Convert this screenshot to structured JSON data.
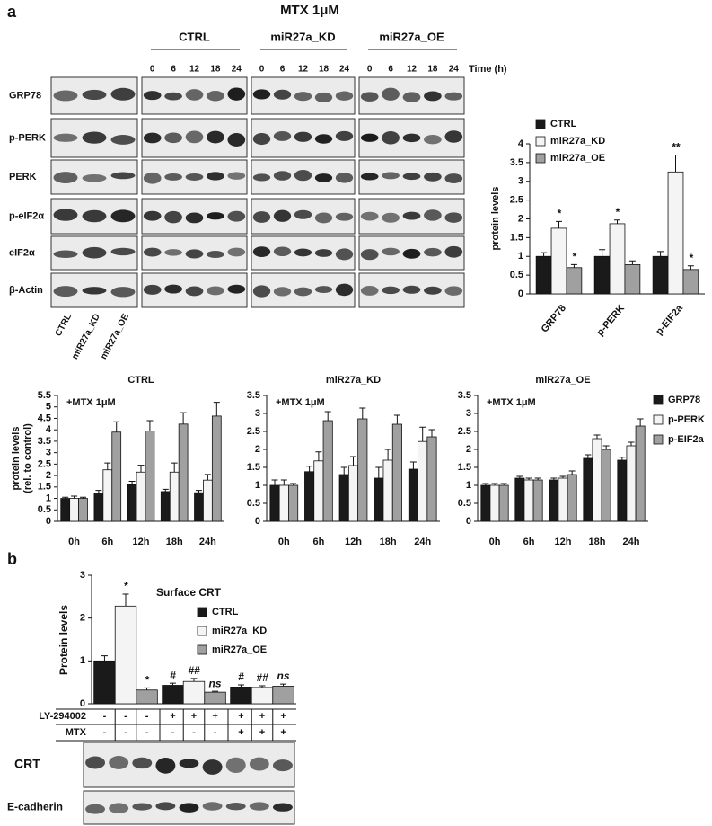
{
  "panel_a": {
    "label": "a",
    "treatment": "MTX 1μM",
    "groups": [
      "CTRL",
      "miR27a_KD",
      "miR27a_OE"
    ],
    "time_points": [
      0,
      6,
      12,
      18,
      24
    ],
    "time_label": "Time (h)",
    "blot_rows": [
      "GRP78",
      "p-PERK",
      "PERK",
      "p-eIF2α",
      "eIF2α",
      "β-Actin"
    ],
    "lane_labels": [
      "CTRL",
      "miR27a_KD",
      "miR27a_OE"
    ]
  },
  "panel_b": {
    "label": "b",
    "treatments": [
      {
        "name": "LY-294002",
        "signs": [
          "-",
          "-",
          "-",
          "+",
          "+",
          "+",
          "+",
          "+",
          "+"
        ]
      },
      {
        "name": "MTX",
        "signs": [
          "-",
          "-",
          "-",
          "-",
          "-",
          "-",
          "+",
          "+",
          "+"
        ]
      }
    ],
    "blots": [
      "CRT",
      "E-cadherin"
    ]
  },
  "chart_data": [
    {
      "type": "bar",
      "ylabel": "protein levels",
      "categories": [
        "GRP78",
        "p-PERK",
        "p-EIF2a"
      ],
      "series": [
        {
          "name": "CTRL",
          "color": "#1a1a1a",
          "values": [
            1,
            1,
            1
          ],
          "errors": [
            0.1,
            0.18,
            0.13
          ],
          "annotations": [
            null,
            null,
            null
          ]
        },
        {
          "name": "miR27a_KD",
          "color": "#f4f4f4",
          "values": [
            1.75,
            1.87,
            3.25
          ],
          "errors": [
            0.18,
            0.1,
            0.45
          ],
          "annotations": [
            "*",
            "*",
            "**"
          ]
        },
        {
          "name": "miR27a_OE",
          "color": "#a0a0a0",
          "values": [
            0.7,
            0.78,
            0.65
          ],
          "errors": [
            0.08,
            0.1,
            0.1
          ],
          "annotations": [
            "*",
            null,
            "*"
          ]
        }
      ],
      "ylim": [
        0,
        4
      ],
      "yticks": [
        0,
        0.5,
        1,
        1.5,
        2,
        2.5,
        3,
        3.5,
        4
      ],
      "legend": "top"
    },
    {
      "type": "bar",
      "ylabel": [
        "protein levels",
        "(rel. to control)"
      ],
      "annotation": "+MTX 1μM",
      "categories": [
        "0h",
        "6h",
        "12h",
        "18h",
        "24h"
      ],
      "series": [
        {
          "name": "GRP78",
          "color": "#1a1a1a"
        },
        {
          "name": "p-PERK",
          "color": "#f4f4f4"
        },
        {
          "name": "p-EIF2a",
          "color": "#a0a0a0"
        }
      ],
      "legend": "right",
      "panels": [
        {
          "title": "CTRL",
          "ylim": [
            0,
            5.5
          ],
          "yticks": [
            0,
            0.5,
            1,
            1.5,
            2,
            2.5,
            3,
            3.5,
            4,
            4.5,
            5,
            5.5
          ],
          "series": [
            {
              "values": [
                1,
                1.2,
                1.6,
                1.3,
                1.25
              ],
              "errors": [
                0.05,
                0.15,
                0.15,
                0.1,
                0.1
              ]
            },
            {
              "values": [
                1,
                2.25,
                2.15,
                2.15,
                1.8
              ],
              "errors": [
                0.1,
                0.3,
                0.3,
                0.4,
                0.25
              ]
            },
            {
              "values": [
                1,
                3.9,
                3.95,
                4.25,
                4.6
              ],
              "errors": [
                0.05,
                0.45,
                0.45,
                0.5,
                0.6
              ]
            }
          ]
        },
        {
          "title": "miR27a_KD",
          "ylim": [
            0,
            3.5
          ],
          "yticks": [
            0,
            0.5,
            1,
            1.5,
            2,
            2.5,
            3,
            3.5
          ],
          "series": [
            {
              "values": [
                1,
                1.38,
                1.3,
                1.2,
                1.45
              ],
              "errors": [
                0.15,
                0.15,
                0.2,
                0.3,
                0.2
              ]
            },
            {
              "values": [
                1,
                1.68,
                1.55,
                1.7,
                2.22
              ],
              "errors": [
                0.15,
                0.25,
                0.25,
                0.3,
                0.4
              ]
            },
            {
              "values": [
                1,
                2.8,
                2.85,
                2.7,
                2.35
              ],
              "errors": [
                0.05,
                0.25,
                0.3,
                0.25,
                0.2
              ]
            }
          ]
        },
        {
          "title": "miR27a_OE",
          "ylim": [
            0,
            3.5
          ],
          "yticks": [
            0,
            0.5,
            1,
            1.5,
            2,
            2.5,
            3,
            3.5
          ],
          "series": [
            {
              "values": [
                1,
                1.2,
                1.15,
                1.75,
                1.7
              ],
              "errors": [
                0.05,
                0.05,
                0.05,
                0.1,
                0.08
              ]
            },
            {
              "values": [
                1,
                1.15,
                1.2,
                2.3,
                2.1
              ],
              "errors": [
                0.05,
                0.05,
                0.05,
                0.1,
                0.1
              ]
            },
            {
              "values": [
                1,
                1.15,
                1.3,
                2.0,
                2.65
              ],
              "errors": [
                0.05,
                0.05,
                0.1,
                0.1,
                0.2
              ]
            }
          ]
        }
      ]
    },
    {
      "type": "bar",
      "title": "Surface CRT",
      "ylabel": "Protein levels",
      "categories": [
        null,
        null,
        null
      ],
      "series": [
        {
          "name": "CTRL",
          "color": "#1a1a1a",
          "values": [
            1,
            0.43,
            0.39
          ],
          "errors": [
            0.12,
            0.05,
            0.05
          ],
          "annotations": [
            null,
            "#",
            "#"
          ]
        },
        {
          "name": "miR27a_KD",
          "color": "#f4f4f4",
          "values": [
            2.28,
            0.52,
            0.38
          ],
          "errors": [
            0.28,
            0.07,
            0.04
          ],
          "annotations": [
            "*",
            "##",
            "##"
          ]
        },
        {
          "name": "miR27a_OE",
          "color": "#a0a0a0",
          "values": [
            0.32,
            0.27,
            0.41
          ],
          "errors": [
            0.05,
            0.02,
            0.05
          ],
          "annotations": [
            "*",
            "ns",
            "ns"
          ]
        }
      ],
      "ylim": [
        0,
        3
      ],
      "yticks": [
        0,
        1,
        2,
        3
      ],
      "legend": "inside"
    }
  ]
}
